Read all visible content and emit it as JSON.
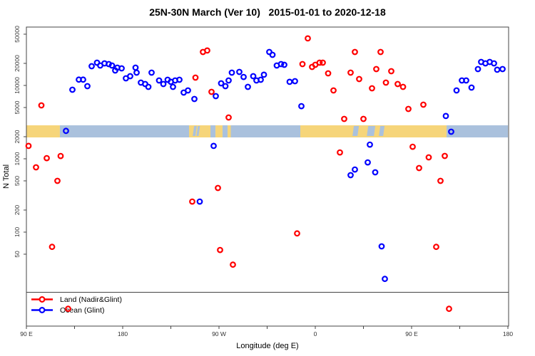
{
  "title": "25N-30N March (Ver 10)   2015-01-01 to 2020-12-18",
  "chart_data": {
    "type": "scatter",
    "title": "25N-30N March (Ver 10)   2015-01-01 to 2020-12-18",
    "xlabel": "Longitude (deg E)",
    "ylabel": "N Total",
    "y_scale": "log",
    "y_ticks": [
      50000,
      20000,
      10000,
      5000,
      2000,
      1000,
      500,
      200,
      100,
      50
    ],
    "x_ticks": [
      {
        "lon": 90,
        "label": "90 E"
      },
      {
        "lon": 135,
        "label": ""
      },
      {
        "lon": 180,
        "label": "180"
      },
      {
        "lon": 225,
        "label": ""
      },
      {
        "lon": 270,
        "label": "90 W"
      },
      {
        "lon": 315,
        "label": ""
      },
      {
        "lon": 360,
        "label": "0"
      },
      {
        "lon": 405,
        "label": ""
      },
      {
        "lon": 450,
        "label": "90 E"
      },
      {
        "lon": 495,
        "label": ""
      },
      {
        "lon": 540,
        "label": "180"
      }
    ],
    "x_range_deg_east": [
      90,
      540
    ],
    "y_range": [
      13,
      55000
    ],
    "grid": false,
    "legend_position": "bottom-left",
    "legend": {
      "items": [
        {
          "label": "Land (Nadir&Glint)",
          "color": "#ff0000"
        },
        {
          "label": "Ocean (Glint)",
          "color": "#0000ff"
        }
      ]
    },
    "map_band": {
      "description": "land/ocean strip across plot",
      "land_color": "#f6d57a",
      "ocean_color": "#aac1dd",
      "segments": [
        {
          "type": "land",
          "from": 90,
          "to": 121.3
        },
        {
          "type": "ocean",
          "from": 121.3,
          "to": 242
        },
        {
          "type": "land",
          "from": 242,
          "to": 262
        },
        {
          "type": "ocean",
          "from": 262,
          "to": 266.7
        },
        {
          "type": "land",
          "from": 266.7,
          "to": 273.3
        },
        {
          "type": "ocean",
          "from": 273.3,
          "to": 278
        },
        {
          "type": "land",
          "from": 278,
          "to": 281
        },
        {
          "type": "ocean",
          "from": 281,
          "to": 346
        },
        {
          "type": "land",
          "from": 346,
          "to": 482.7
        },
        {
          "type": "ocean",
          "from": 482.7,
          "to": 540
        }
      ],
      "ocean_streaks_in_land": [
        {
          "from": 246,
          "to": 248.5
        },
        {
          "from": 249.5,
          "to": 251.5
        },
        {
          "from": 395.3,
          "to": 400
        },
        {
          "from": 408.7,
          "to": 415.3
        },
        {
          "from": 420,
          "to": 424
        }
      ]
    },
    "series": [
      {
        "name": "Land (Nadir&Glint)",
        "color": "#ff0000",
        "points": [
          [
            92,
            1500
          ],
          [
            99,
            764
          ],
          [
            104,
            5350
          ],
          [
            109,
            1020
          ],
          [
            114,
            63
          ],
          [
            119,
            500
          ],
          [
            122,
            1090
          ],
          [
            129,
            9
          ],
          [
            245,
            261
          ],
          [
            248,
            12790
          ],
          [
            255,
            28600
          ],
          [
            259,
            30000
          ],
          [
            263,
            8180
          ],
          [
            269,
            400
          ],
          [
            271,
            57
          ],
          [
            279,
            3660
          ],
          [
            283,
            36
          ],
          [
            343,
            96
          ],
          [
            348,
            19550
          ],
          [
            353,
            43800
          ],
          [
            357,
            17870
          ],
          [
            360,
            19140
          ],
          [
            364,
            20460
          ],
          [
            367,
            20460
          ],
          [
            372,
            14620
          ],
          [
            377,
            8550
          ],
          [
            383,
            1220
          ],
          [
            387,
            3500
          ],
          [
            393,
            14960
          ],
          [
            397,
            28600
          ],
          [
            401,
            12220
          ],
          [
            405,
            3500
          ],
          [
            413,
            9140
          ],
          [
            417,
            16710
          ],
          [
            421,
            28600
          ],
          [
            426,
            10940
          ],
          [
            431,
            15630
          ],
          [
            437,
            10450
          ],
          [
            442,
            9570
          ],
          [
            447,
            4780
          ],
          [
            451,
            1460
          ],
          [
            457,
            748
          ],
          [
            461,
            5470
          ],
          [
            466,
            1045
          ],
          [
            473,
            63
          ],
          [
            477,
            500
          ],
          [
            481,
            1094
          ],
          [
            485,
            9
          ]
        ]
      },
      {
        "name": "Ocean (Glint)",
        "color": "#0000ff",
        "points": [
          [
            127,
            2400
          ],
          [
            133,
            8750
          ],
          [
            139,
            12000
          ],
          [
            143,
            12000
          ],
          [
            147,
            9780
          ],
          [
            151,
            18280
          ],
          [
            156,
            20460
          ],
          [
            159,
            18700
          ],
          [
            163,
            20000
          ],
          [
            167,
            19550
          ],
          [
            170,
            18700
          ],
          [
            173,
            16000
          ],
          [
            175,
            17500
          ],
          [
            179,
            17100
          ],
          [
            183,
            12500
          ],
          [
            187,
            13370
          ],
          [
            192,
            17500
          ],
          [
            193,
            14960
          ],
          [
            197,
            10940
          ],
          [
            201,
            10450
          ],
          [
            204,
            9570
          ],
          [
            207,
            14960
          ],
          [
            214,
            11700
          ],
          [
            218,
            10450
          ],
          [
            222,
            11970
          ],
          [
            225,
            11200
          ],
          [
            227,
            9570
          ],
          [
            229,
            11700
          ],
          [
            233,
            11970
          ],
          [
            237,
            8000
          ],
          [
            241,
            8550
          ],
          [
            247,
            6540
          ],
          [
            252,
            261
          ],
          [
            265,
            1500
          ],
          [
            267,
            7150
          ],
          [
            272,
            10700
          ],
          [
            276,
            9780
          ],
          [
            279,
            11700
          ],
          [
            282,
            14960
          ],
          [
            289,
            15280
          ],
          [
            293,
            13060
          ],
          [
            297,
            9570
          ],
          [
            302,
            13370
          ],
          [
            305,
            11700
          ],
          [
            309,
            11970
          ],
          [
            312,
            14000
          ],
          [
            317,
            28600
          ],
          [
            320,
            26140
          ],
          [
            324,
            18700
          ],
          [
            328,
            19550
          ],
          [
            331,
            19140
          ],
          [
            336,
            11200
          ],
          [
            341,
            11430
          ],
          [
            347,
            5220
          ],
          [
            393,
            598
          ],
          [
            397,
            714
          ],
          [
            409,
            893
          ],
          [
            411,
            1560
          ],
          [
            416,
            654
          ],
          [
            422,
            64
          ],
          [
            425,
            23
          ],
          [
            482,
            3830
          ],
          [
            487,
            2340
          ],
          [
            492,
            8550
          ],
          [
            497,
            11700
          ],
          [
            501,
            11700
          ],
          [
            506,
            9360
          ],
          [
            512,
            16710
          ],
          [
            515,
            20890
          ],
          [
            519,
            20000
          ],
          [
            523,
            20890
          ],
          [
            527,
            20000
          ],
          [
            530,
            16370
          ],
          [
            535,
            16710
          ]
        ]
      }
    ]
  }
}
